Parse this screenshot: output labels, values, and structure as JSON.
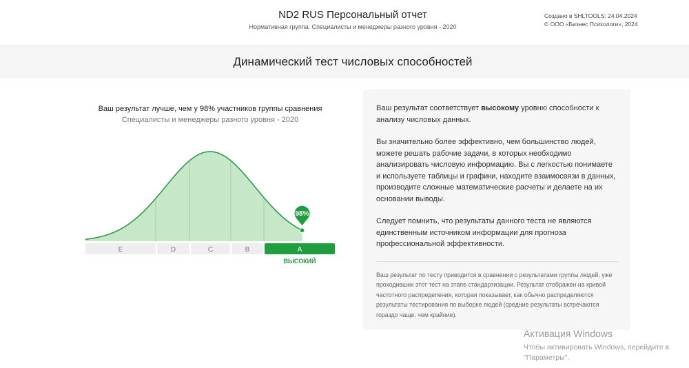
{
  "header": {
    "title": "ND2 RUS Персональный отчет",
    "subtitle": "Нормативная группа: Специалисты и менеджеры разного уровня - 2020",
    "created": "Создано в SHLTOOLS: 24.04.2024",
    "copyright": "© ООО «Бизнес Психологи», 2024"
  },
  "section": {
    "title": "Динамический тест числовых способностей"
  },
  "result": {
    "headline": "Ваш результат лучше, чем у 98% участников группы сравнения",
    "group": "Специалисты и менеджеры разного уровня - 2020",
    "percentile_label": "98%",
    "percentile": 98,
    "level_label": "ВЫСОКИЙ"
  },
  "chart_data": {
    "type": "area",
    "title": "",
    "distribution": "normal",
    "bands": [
      "E",
      "D",
      "C",
      "B",
      "A"
    ],
    "selected_band": "A",
    "marker_percentile": 98,
    "colors": {
      "fill": "#c6e8c9",
      "line": "#2e9a45",
      "accent": "#1e9e3e",
      "band": "#eeeeee"
    }
  },
  "description": {
    "p1_pre": "Ваш результат соответствует ",
    "p1_bold": "высокому",
    "p1_post": " уровню способности к анализу числовых данных.",
    "p2": "Вы значительно более эффективно, чем большинство людей, можете решать рабочие задачи, в которых необходимо анализировать числовую информацию. Вы с легкостью понимаете и используете таблицы и графики, находите взаимосвязи в данных, производите сложные математические расчеты и делаете на их основании выводы.",
    "p3": "Следует помнить, что результаты данного теста не являются единственным источником информации для прогноза профессиональной эффективности.",
    "note": "Ваш результат по тесту приводится в сравнении с результатами группы людей, уже проходивших этот тест на этапе стандартизации. Результат отображен на кривой частотного распределения, которая показывает, как обычно распределяются результаты тестирования по выборке людей (средние результаты встречаются гораздо чаще, чем крайние)."
  },
  "watermark": {
    "title": "Активация Windows",
    "text": "Чтобы активировать Windows, перейдите в \"Параметры\"."
  }
}
